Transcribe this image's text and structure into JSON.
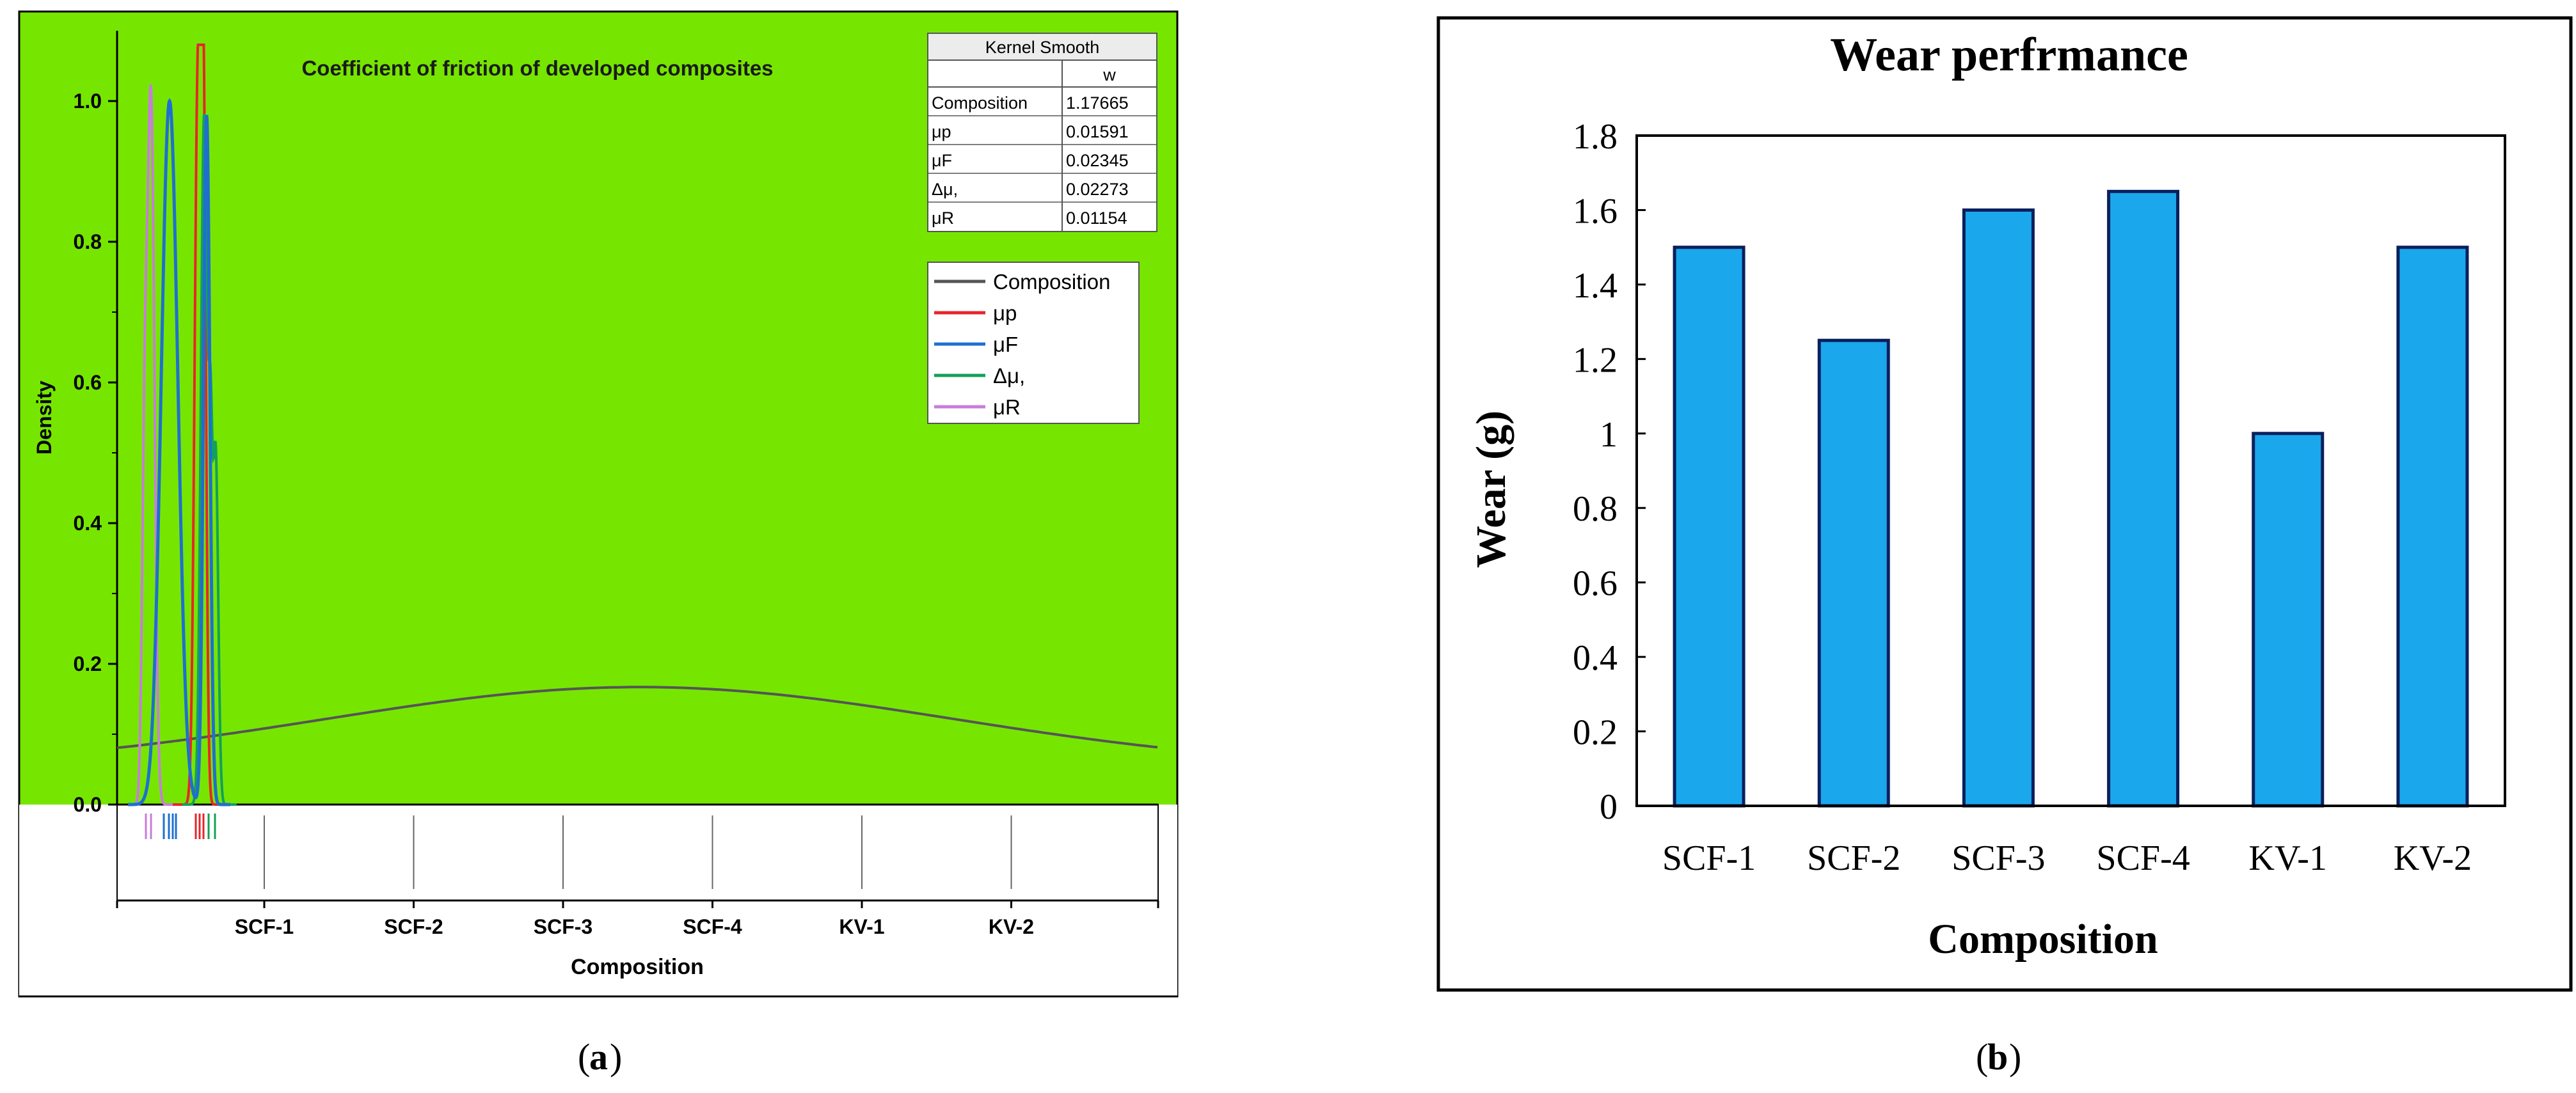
{
  "figure": {
    "panel_a_caption": "a",
    "panel_b_caption": "b"
  },
  "chart_data": [
    {
      "type": "line",
      "title": "Coefficient of friction of developed composites",
      "xlabel": "Composition",
      "ylabel": "Density",
      "categories": [
        "SCF-1",
        "SCF-2",
        "SCF-3",
        "SCF-4",
        "KV-1",
        "KV-2"
      ],
      "yticks": [
        "0.0",
        "0.2",
        "0.4",
        "0.6",
        "0.8",
        "1.0"
      ],
      "ylim": [
        0,
        1.1
      ],
      "background_color": "#76E600",
      "legend_position": "top-right",
      "series": [
        {
          "name": "Composition",
          "color": "#555555",
          "bandwidth": "1.17665"
        },
        {
          "name": "μp",
          "color": "#E8252B",
          "bandwidth": "0.01591"
        },
        {
          "name": "μF",
          "color": "#1F6FD0",
          "bandwidth": "0.02345"
        },
        {
          "name": "Δμ,",
          "color": "#14A05A",
          "bandwidth": "0.02273"
        },
        {
          "name": "μR",
          "color": "#C77DDB",
          "bandwidth": "0.01154"
        }
      ],
      "kernel_table": {
        "title": "Kernel Smooth",
        "column_header": "w",
        "rows": [
          {
            "label": "Composition",
            "value": "1.17665"
          },
          {
            "label": "μp",
            "value": "0.01591"
          },
          {
            "label": "μF",
            "value": "0.02345"
          },
          {
            "label": "Δμ,",
            "value": "0.02273"
          },
          {
            "label": "μR",
            "value": "0.01154"
          }
        ]
      }
    },
    {
      "type": "bar",
      "title": "Wear perfrmance",
      "xlabel": "Composition",
      "ylabel": "Wear (g)",
      "categories": [
        "SCF-1",
        "SCF-2",
        "SCF-3",
        "SCF-4",
        "KV-1",
        "KV-2"
      ],
      "values": [
        1.5,
        1.25,
        1.6,
        1.65,
        1.0,
        1.5
      ],
      "yticks": [
        "0",
        "0.2",
        "0.4",
        "0.6",
        "0.8",
        "1",
        "1.2",
        "1.4",
        "1.6",
        "1.8"
      ],
      "ylim": [
        0,
        1.8
      ],
      "bar_color": "#1AA7EC",
      "bar_edge_color": "#0A1F5C",
      "grid": false
    }
  ]
}
